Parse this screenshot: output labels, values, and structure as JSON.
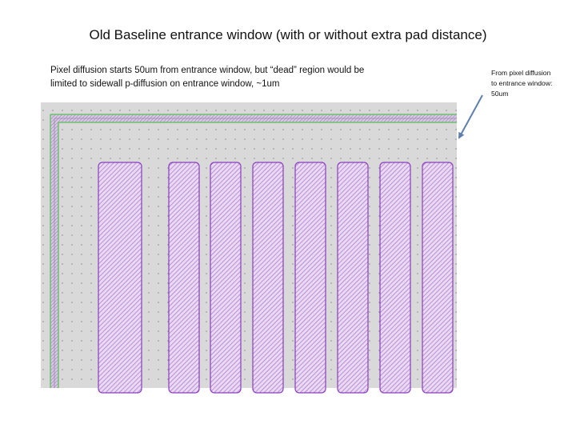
{
  "title": "Old Baseline entrance window (with or without extra pad distance)",
  "description_left": {
    "line1": "Pixel diffusion starts 50um from entrance window, but “dead” region would be",
    "line2": "limited to sidewall p-diffusion on entrance window, ~1um"
  },
  "annotation_right": {
    "line1": "From pixel diffusion",
    "line2": "to entrance window:",
    "line3": "50um"
  },
  "colors": {
    "canvas_background": "#d9d9d9",
    "grid_dots": "#8a8a8a",
    "diffusion_stroke": "#8a3fbf",
    "diffusion_fill": "#e9d9f1",
    "hatch": "#a86fd0",
    "edge_green": "#6fbf6f",
    "arrow": "#5f7fae"
  },
  "layout_view": {
    "pixel_diffusion_count": 8
  }
}
